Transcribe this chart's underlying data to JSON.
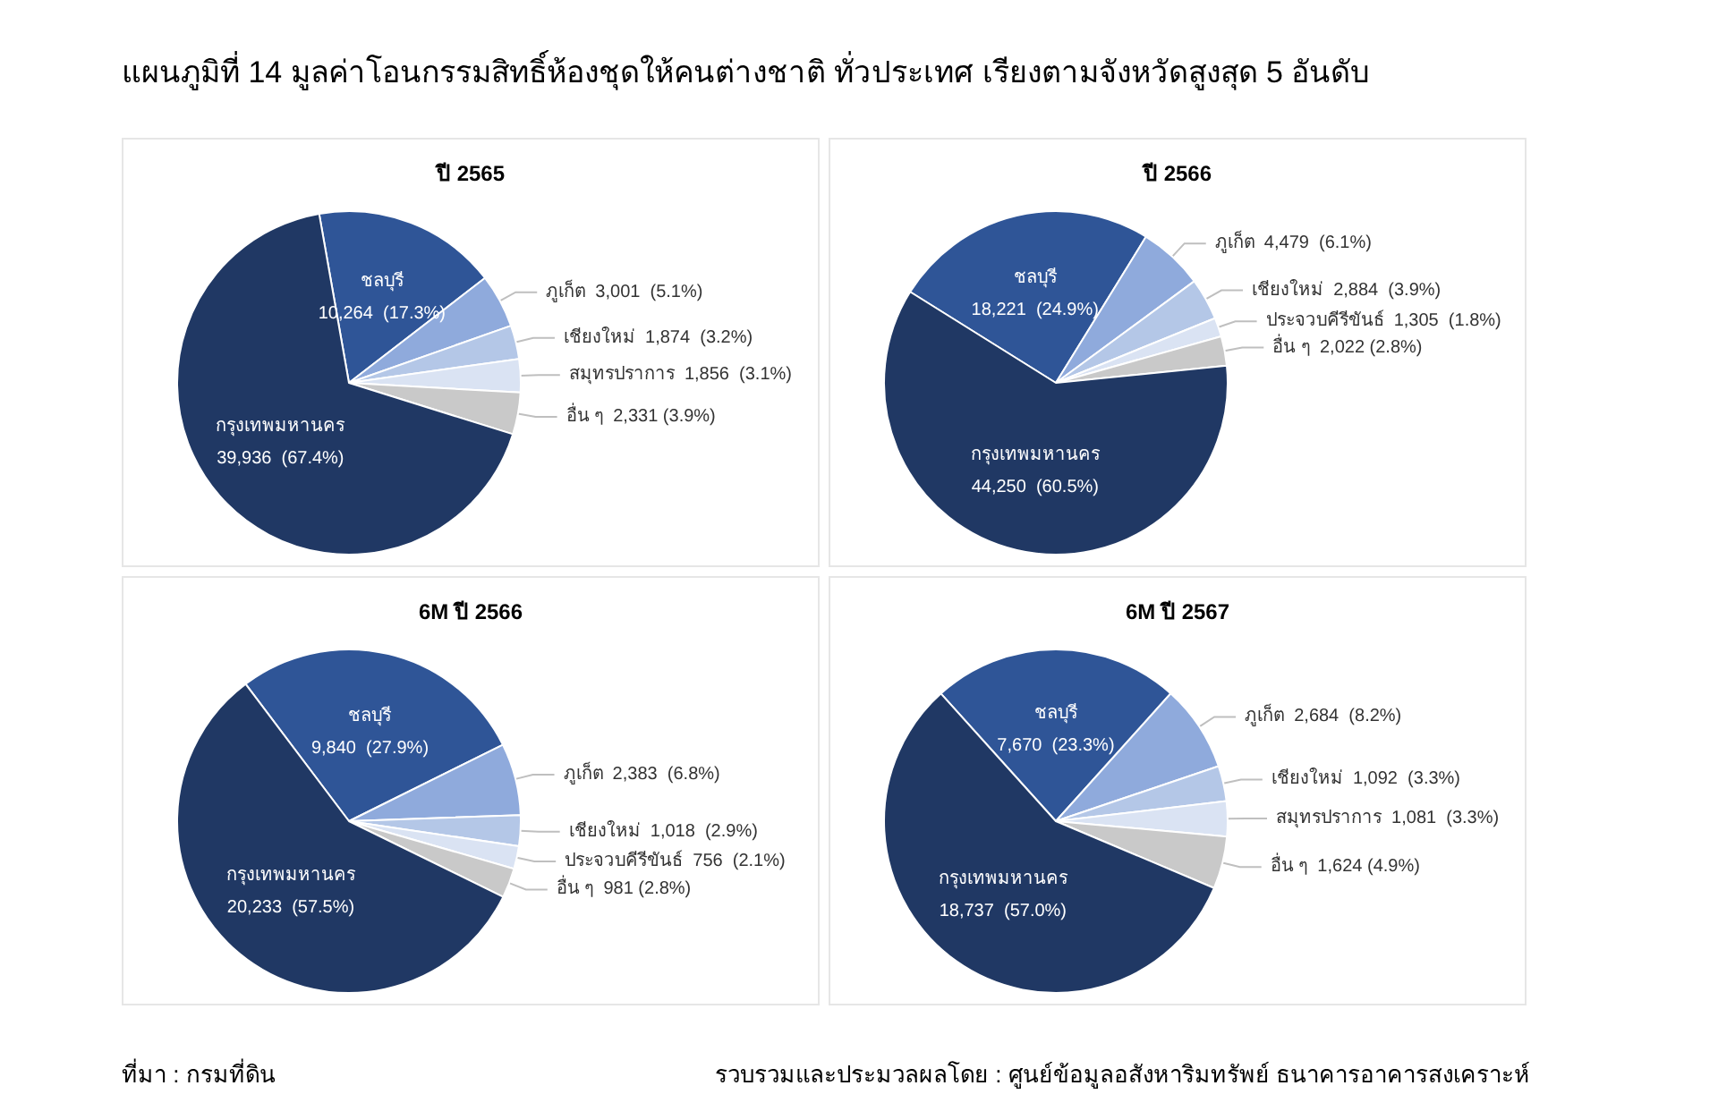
{
  "chart_data": [
    {
      "type": "pie",
      "title": "ปี 2565",
      "categories": [
        "ชลบุรี",
        "ภูเก็ต",
        "เชียงใหม่",
        "สมุทรปราการ",
        "อื่น ๆ",
        "กรุงเทพมหานคร"
      ],
      "values": [
        10264,
        3001,
        1874,
        1856,
        2331,
        39936
      ],
      "colors": [
        "#2f5597",
        "#8faadc",
        "#b4c7e7",
        "#dae3f3",
        "#c9c9c9",
        "#203864"
      ],
      "value_labels": [
        "10,264  (17.3%)",
        "3,001  (5.1%)",
        "1,874  (3.2%)",
        "1,856  (3.1%)",
        "2,331 (3.9%)",
        "39,936  (67.4%)"
      ],
      "annotations": [
        "แผนภูมิที่ 14 มูลค่าโอนกรรมสิทธิ์ห้องชุดให้คนต่างชาติ ทั่วประเทศ เรียงตามจังหวัดสูงสุด 5 อันดับ",
        "ที่มา : กรมที่ดิน",
        "รวบรวมและประมวลผลโดย : ศูนย์ข้อมูลอสังหาริมทรัพย์ ธนาคารอาคารสงเคราะห์"
      ]
    },
    {
      "type": "pie",
      "title": "ปี 2566",
      "categories": [
        "ชลบุรี",
        "ภูเก็ต",
        "เชียงใหม่",
        "ประจวบคีรีขันธ์",
        "อื่น ๆ",
        "กรุงเทพมหานคร"
      ],
      "values": [
        18221,
        4479,
        2884,
        1305,
        2022,
        44250
      ],
      "colors": [
        "#2f5597",
        "#8faadc",
        "#b4c7e7",
        "#dae3f3",
        "#c9c9c9",
        "#203864"
      ],
      "value_labels": [
        "18,221  (24.9%)",
        "4,479  (6.1%)",
        "2,884  (3.9%)",
        "1,305  (1.8%)",
        "2,022 (2.8%)",
        "44,250  (60.5%)"
      ]
    },
    {
      "type": "pie",
      "title": "6M ปี 2566",
      "categories": [
        "ชลบุรี",
        "ภูเก็ต",
        "เชียงใหม่",
        "ประจวบคีรีขันธ์",
        "อื่น ๆ",
        "กรุงเทพมหานคร"
      ],
      "values": [
        9840,
        2383,
        1018,
        756,
        981,
        20233
      ],
      "colors": [
        "#2f5597",
        "#8faadc",
        "#b4c7e7",
        "#dae3f3",
        "#c9c9c9",
        "#203864"
      ],
      "value_labels": [
        "9,840  (27.9%)",
        "2,383  (6.8%)",
        "1,018  (2.9%)",
        "756  (2.1%)",
        "981 (2.8%)",
        "20,233  (57.5%)"
      ]
    },
    {
      "type": "pie",
      "title": "6M ปี 2567",
      "categories": [
        "ชลบุรี",
        "ภูเก็ต",
        "เชียงใหม่",
        "สมุทรปราการ",
        "อื่น ๆ",
        "กรุงเทพมหานคร"
      ],
      "values": [
        7670,
        2684,
        1092,
        1081,
        1624,
        18737
      ],
      "colors": [
        "#2f5597",
        "#8faadc",
        "#b4c7e7",
        "#dae3f3",
        "#c9c9c9",
        "#203864"
      ],
      "value_labels": [
        "7,670  (23.3%)",
        "2,684  (8.2%)",
        "1,092  (3.3%)",
        "1,081  (3.3%)",
        "1,624 (4.9%)",
        "18,737  (57.0%)"
      ]
    }
  ]
}
